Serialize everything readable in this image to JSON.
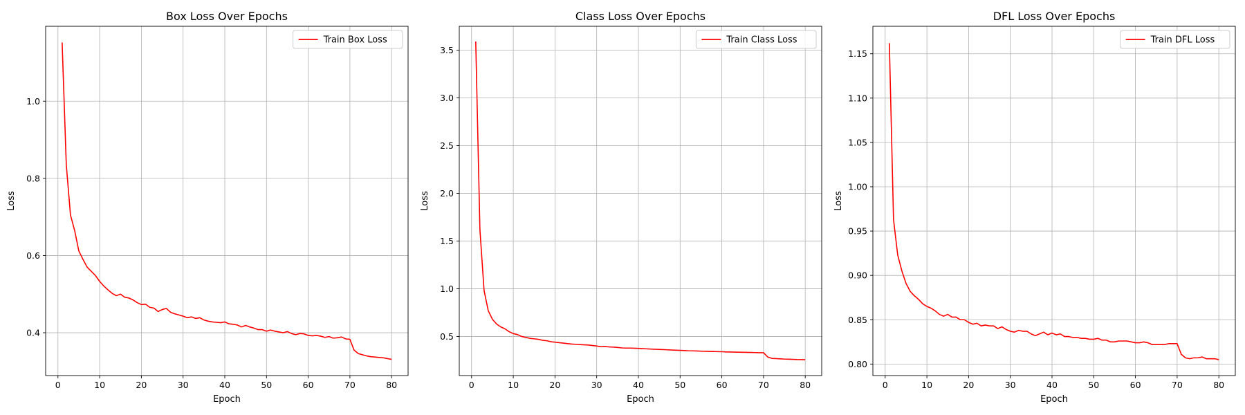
{
  "chart_data": [
    {
      "type": "line",
      "title": "Box Loss Over Epochs",
      "xlabel": "Epoch",
      "ylabel": "Loss",
      "xlim": [
        -2.95,
        83.95
      ],
      "ylim": [
        0.289,
        1.194
      ],
      "xticks": [
        0,
        10,
        20,
        30,
        40,
        50,
        60,
        70,
        80
      ],
      "yticks": [
        0.4,
        0.6,
        0.8,
        1.0
      ],
      "ytick_labels": [
        "0.4",
        "0.6",
        "0.8",
        "1.0"
      ],
      "grid": true,
      "legend_position": "top-right",
      "series": [
        {
          "name": "Train Box Loss",
          "color": "#ff0000",
          "x": [
            1,
            2,
            3,
            4,
            5,
            6,
            7,
            8,
            9,
            10,
            11,
            12,
            13,
            14,
            15,
            16,
            17,
            18,
            19,
            20,
            21,
            22,
            23,
            24,
            25,
            26,
            27,
            28,
            29,
            30,
            31,
            32,
            33,
            34,
            35,
            36,
            37,
            38,
            39,
            40,
            41,
            42,
            43,
            44,
            45,
            46,
            47,
            48,
            49,
            50,
            51,
            52,
            53,
            54,
            55,
            56,
            57,
            58,
            59,
            60,
            61,
            62,
            63,
            64,
            65,
            66,
            67,
            68,
            69,
            70,
            71,
            72,
            73,
            74,
            75,
            76,
            77,
            78,
            79,
            80
          ],
          "y": [
            1.152,
            0.835,
            0.705,
            0.665,
            0.612,
            0.59,
            0.57,
            0.559,
            0.548,
            0.533,
            0.521,
            0.511,
            0.502,
            0.496,
            0.5,
            0.492,
            0.49,
            0.485,
            0.478,
            0.473,
            0.474,
            0.466,
            0.464,
            0.455,
            0.46,
            0.463,
            0.453,
            0.449,
            0.446,
            0.443,
            0.439,
            0.441,
            0.437,
            0.439,
            0.433,
            0.43,
            0.428,
            0.427,
            0.426,
            0.428,
            0.423,
            0.422,
            0.42,
            0.415,
            0.419,
            0.415,
            0.412,
            0.408,
            0.408,
            0.404,
            0.407,
            0.404,
            0.402,
            0.4,
            0.403,
            0.398,
            0.395,
            0.398,
            0.397,
            0.393,
            0.392,
            0.393,
            0.391,
            0.388,
            0.39,
            0.386,
            0.387,
            0.389,
            0.384,
            0.383,
            0.355,
            0.346,
            0.343,
            0.34,
            0.338,
            0.337,
            0.336,
            0.335,
            0.333,
            0.331
          ]
        }
      ]
    },
    {
      "type": "line",
      "title": "Class Loss Over Epochs",
      "xlabel": "Epoch",
      "ylabel": "Loss",
      "xlim": [
        -2.95,
        83.95
      ],
      "ylim": [
        0.09,
        3.75
      ],
      "xticks": [
        0,
        10,
        20,
        30,
        40,
        50,
        60,
        70,
        80
      ],
      "yticks": [
        0.5,
        1.0,
        1.5,
        2.0,
        2.5,
        3.0,
        3.5
      ],
      "ytick_labels": [
        "0.5",
        "1.0",
        "1.5",
        "2.0",
        "2.5",
        "3.0",
        "3.5"
      ],
      "grid": true,
      "legend_position": "top-right",
      "series": [
        {
          "name": "Train Class Loss",
          "color": "#ff0000",
          "x": [
            1,
            2,
            3,
            4,
            5,
            6,
            7,
            8,
            9,
            10,
            11,
            12,
            13,
            14,
            15,
            16,
            17,
            18,
            19,
            20,
            21,
            22,
            23,
            24,
            25,
            26,
            27,
            28,
            29,
            30,
            31,
            32,
            33,
            34,
            35,
            36,
            37,
            38,
            39,
            40,
            41,
            42,
            43,
            44,
            45,
            46,
            47,
            48,
            49,
            50,
            51,
            52,
            53,
            54,
            55,
            56,
            57,
            58,
            59,
            60,
            61,
            62,
            63,
            64,
            65,
            66,
            67,
            68,
            69,
            70,
            71,
            72,
            73,
            74,
            75,
            76,
            77,
            78,
            79,
            80
          ],
          "y": [
            3.59,
            1.62,
            0.98,
            0.77,
            0.68,
            0.63,
            0.6,
            0.58,
            0.55,
            0.53,
            0.52,
            0.5,
            0.49,
            0.48,
            0.475,
            0.47,
            0.46,
            0.455,
            0.445,
            0.44,
            0.435,
            0.43,
            0.425,
            0.42,
            0.418,
            0.415,
            0.412,
            0.41,
            0.405,
            0.4,
            0.392,
            0.395,
            0.39,
            0.388,
            0.385,
            0.38,
            0.378,
            0.378,
            0.377,
            0.375,
            0.372,
            0.37,
            0.368,
            0.366,
            0.364,
            0.362,
            0.36,
            0.358,
            0.356,
            0.354,
            0.352,
            0.35,
            0.349,
            0.348,
            0.346,
            0.345,
            0.343,
            0.342,
            0.341,
            0.34,
            0.338,
            0.337,
            0.336,
            0.335,
            0.334,
            0.333,
            0.332,
            0.331,
            0.33,
            0.33,
            0.285,
            0.27,
            0.268,
            0.265,
            0.263,
            0.262,
            0.26,
            0.258,
            0.257,
            0.256
          ]
        }
      ]
    },
    {
      "type": "line",
      "title": "DFL Loss Over Epochs",
      "xlabel": "Epoch",
      "ylabel": "Loss",
      "xlim": [
        -2.95,
        83.95
      ],
      "ylim": [
        0.787,
        1.181
      ],
      "xticks": [
        0,
        10,
        20,
        30,
        40,
        50,
        60,
        70,
        80
      ],
      "yticks": [
        0.8,
        0.85,
        0.9,
        0.95,
        1.0,
        1.05,
        1.1,
        1.15
      ],
      "ytick_labels": [
        "0.80",
        "0.85",
        "0.90",
        "0.95",
        "1.00",
        "1.05",
        "1.10",
        "1.15"
      ],
      "grid": true,
      "legend_position": "top-right",
      "series": [
        {
          "name": "Train DFL Loss",
          "color": "#ff0000",
          "x": [
            1,
            2,
            3,
            4,
            5,
            6,
            7,
            8,
            9,
            10,
            11,
            12,
            13,
            14,
            15,
            16,
            17,
            18,
            19,
            20,
            21,
            22,
            23,
            24,
            25,
            26,
            27,
            28,
            29,
            30,
            31,
            32,
            33,
            34,
            35,
            36,
            37,
            38,
            39,
            40,
            41,
            42,
            43,
            44,
            45,
            46,
            47,
            48,
            49,
            50,
            51,
            52,
            53,
            54,
            55,
            56,
            57,
            58,
            59,
            60,
            61,
            62,
            63,
            64,
            65,
            66,
            67,
            68,
            69,
            70,
            71,
            72,
            73,
            74,
            75,
            76,
            77,
            78,
            79,
            80
          ],
          "y": [
            1.162,
            0.963,
            0.923,
            0.905,
            0.891,
            0.882,
            0.877,
            0.873,
            0.868,
            0.865,
            0.863,
            0.86,
            0.856,
            0.854,
            0.856,
            0.853,
            0.853,
            0.85,
            0.85,
            0.847,
            0.845,
            0.846,
            0.843,
            0.844,
            0.843,
            0.843,
            0.84,
            0.842,
            0.839,
            0.837,
            0.836,
            0.838,
            0.837,
            0.837,
            0.834,
            0.832,
            0.834,
            0.836,
            0.833,
            0.835,
            0.833,
            0.834,
            0.831,
            0.831,
            0.83,
            0.83,
            0.829,
            0.829,
            0.828,
            0.828,
            0.829,
            0.827,
            0.827,
            0.825,
            0.825,
            0.826,
            0.826,
            0.826,
            0.825,
            0.824,
            0.824,
            0.825,
            0.824,
            0.822,
            0.822,
            0.822,
            0.822,
            0.823,
            0.823,
            0.823,
            0.811,
            0.807,
            0.806,
            0.807,
            0.807,
            0.808,
            0.806,
            0.806,
            0.806,
            0.805
          ]
        }
      ]
    }
  ]
}
